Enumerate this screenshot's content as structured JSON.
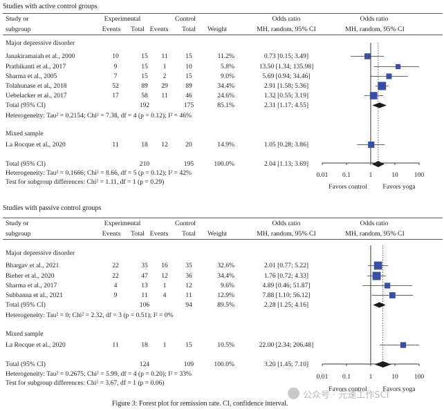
{
  "colors": {
    "box": "#3a4fa3",
    "diamond": "#1a1a1a",
    "line": "#333333",
    "dotted": "#333333"
  },
  "header": {
    "study": "Study or",
    "subgroup": "subgroup",
    "experimental": "Experimental",
    "control": "Control",
    "events": "Events",
    "total": "Total",
    "weight": "Weight",
    "or_title": "Odds ratio",
    "or_method": "MH, random, 95% CI"
  },
  "favors": {
    "left": "Favors control",
    "right": "Favors yoga"
  },
  "axis_ticks": [
    "0.01",
    "0.1",
    "1",
    "10",
    "100"
  ],
  "panels": [
    {
      "title": "Studies with active control groups",
      "groups": [
        {
          "name": "Major depressive disorder",
          "studies": [
            {
              "study": "Janakiramaiah et al., 2000",
              "e_events": "10",
              "e_total": "15",
              "c_events": "11",
              "c_total": "15",
              "weight": "11.2%",
              "ci": "0.73 [0.15; 3.49]"
            },
            {
              "study": "Prathikanti et al., 2017",
              "e_events": "9",
              "e_total": "15",
              "c_events": "1",
              "c_total": "10",
              "weight": "5.8%",
              "ci": "13.50 [1.34; 135.98]"
            },
            {
              "study": "Sharma et al., 2005",
              "e_events": "7",
              "e_total": "15",
              "c_events": "2",
              "c_total": "15",
              "weight": "9.0%",
              "ci": "5.69 [0.94; 34.46]"
            },
            {
              "study": "Tolahunase et al., 2018",
              "e_events": "52",
              "e_total": "89",
              "c_events": "29",
              "c_total": "89",
              "weight": "34.4%",
              "ci": "2.91 [1.58; 5.36]"
            },
            {
              "study": "Uebelacker et al., 2017",
              "e_events": "17",
              "e_total": "58",
              "c_events": "11",
              "c_total": "46",
              "weight": "24.6%",
              "ci": "1.32 [0.55; 3.19]"
            }
          ],
          "total": {
            "label": "Total (95% CI)",
            "e_total": "192",
            "c_total": "175",
            "weight": "85.1%",
            "ci": "2.31 [1.17; 4.55]"
          },
          "heterogeneity": "Heterogeneity: Tau² = 0.2154; Chi² = 7.38, df = 4 (p = 0.12); I² = 46%"
        },
        {
          "name": "Mixed sample",
          "studies": [
            {
              "study": "La Rocque et al., 2020",
              "e_events": "11",
              "e_total": "18",
              "c_events": "12",
              "c_total": "20",
              "weight": "14.9%",
              "ci": "1.05 [0.28; 3.86]"
            }
          ]
        }
      ],
      "overall": {
        "label": "Total (95% CI)",
        "e_total": "210",
        "c_total": "195",
        "weight": "100.0%",
        "ci": "2.04 [1.13; 3.69]"
      },
      "overall_heterogeneity": "Heterogeneity: Tau² = 0.1666; Chi² = 8.66, df = 5 (p = 0.12); I² = 42%",
      "subgroup_test": "Test for subgroup differences: Chi² = 1.11, df = 1 (p = 0.29)"
    },
    {
      "title": "Studies with passive control groups",
      "groups": [
        {
          "name": "Major depressive disorder",
          "studies": [
            {
              "study": "Bhargav et al., 2021",
              "e_events": "22",
              "e_total": "35",
              "c_events": "16",
              "c_total": "35",
              "weight": "32.6%",
              "ci": "2.01 [0.77; 5.22]"
            },
            {
              "study": "Bieber et al., 2020",
              "e_events": "22",
              "e_total": "47",
              "c_events": "12",
              "c_total": "36",
              "weight": "34.4%",
              "ci": "1.76 [0.72; 4.33]"
            },
            {
              "study": "Sharma et al., 2017",
              "e_events": "4",
              "e_total": "13",
              "c_events": "1",
              "c_total": "12",
              "weight": "9.6%",
              "ci": "4.89 [0.46; 51.87]"
            },
            {
              "study": "Subbanna et al., 2021",
              "e_events": "9",
              "e_total": "11",
              "c_events": "4",
              "c_total": "11",
              "weight": "12.9%",
              "ci": "7.88 [1.10; 56.12]"
            }
          ],
          "total": {
            "label": "Total (95% CI)",
            "e_total": "106",
            "c_total": "94",
            "weight": "89.5%",
            "ci": "2.28 [1.25; 4.16]"
          },
          "heterogeneity": "Heterogeneity: Tau² = 0; Chi² = 2.32, df = 3 (p = 0.51); I² = 0%"
        },
        {
          "name": "Mixed sample",
          "studies": [
            {
              "study": "La Rocque et al., 2020",
              "e_events": "11",
              "e_total": "18",
              "c_events": "1",
              "c_total": "15",
              "weight": "10.5%",
              "ci": "22.00 [2.34; 206.48]"
            }
          ]
        }
      ],
      "overall": {
        "label": "Total (95% CI)",
        "e_total": "124",
        "c_total": "109",
        "weight": "100.0%",
        "ci": "3.20 [1.45; 7.10]"
      },
      "overall_heterogeneity": "Heterogeneity: Tau² = 0.2675; Chi² = 5.99, df = 4 (p = 0.20); I² = 33%",
      "subgroup_test": "Test for subgroup differences: Chi² = 3.67, df = 1 (p = 0.06)"
    }
  ],
  "caption": "Figure 3: Forest plot for remission rate. CI, confidence interval.",
  "watermark": "公众号 · 元速工作SCI",
  "chart_data": [
    {
      "type": "forest",
      "title": "Studies with active control groups",
      "xscale": "log",
      "xlim": [
        0.01,
        100
      ],
      "reference_line": 1,
      "overall_dotted_line": 2.04,
      "studies": [
        {
          "name": "Janakiramaiah et al., 2000",
          "group": "Major depressive disorder",
          "or": 0.73,
          "lo": 0.15,
          "hi": 3.49,
          "weight": 11.2
        },
        {
          "name": "Prathikanti et al., 2017",
          "group": "Major depressive disorder",
          "or": 13.5,
          "lo": 1.34,
          "hi": 135.98,
          "weight": 5.8
        },
        {
          "name": "Sharma et al., 2005",
          "group": "Major depressive disorder",
          "or": 5.69,
          "lo": 0.94,
          "hi": 34.46,
          "weight": 9.0
        },
        {
          "name": "Tolahunase et al., 2018",
          "group": "Major depressive disorder",
          "or": 2.91,
          "lo": 1.58,
          "hi": 5.36,
          "weight": 34.4
        },
        {
          "name": "Uebelacker et al., 2017",
          "group": "Major depressive disorder",
          "or": 1.32,
          "lo": 0.55,
          "hi": 3.19,
          "weight": 24.6
        },
        {
          "name": "La Rocque et al., 2020",
          "group": "Mixed sample",
          "or": 1.05,
          "lo": 0.28,
          "hi": 3.86,
          "weight": 14.9
        }
      ],
      "subtotals": [
        {
          "group": "Major depressive disorder",
          "or": 2.31,
          "lo": 1.17,
          "hi": 4.55
        }
      ],
      "overall": {
        "or": 2.04,
        "lo": 1.13,
        "hi": 3.69
      }
    },
    {
      "type": "forest",
      "title": "Studies with passive control groups",
      "xscale": "log",
      "xlim": [
        0.01,
        100
      ],
      "reference_line": 1,
      "overall_dotted_line": 3.2,
      "studies": [
        {
          "name": "Bhargav et al., 2021",
          "group": "Major depressive disorder",
          "or": 2.01,
          "lo": 0.77,
          "hi": 5.22,
          "weight": 32.6
        },
        {
          "name": "Bieber et al., 2020",
          "group": "Major depressive disorder",
          "or": 1.76,
          "lo": 0.72,
          "hi": 4.33,
          "weight": 34.4
        },
        {
          "name": "Sharma et al., 2017",
          "group": "Major depressive disorder",
          "or": 4.89,
          "lo": 0.46,
          "hi": 51.87,
          "weight": 9.6
        },
        {
          "name": "Subbanna et al., 2021",
          "group": "Major depressive disorder",
          "or": 7.88,
          "lo": 1.1,
          "hi": 56.12,
          "weight": 12.9
        },
        {
          "name": "La Rocque et al., 2020",
          "group": "Mixed sample",
          "or": 22.0,
          "lo": 2.34,
          "hi": 206.48,
          "weight": 10.5
        }
      ],
      "subtotals": [
        {
          "group": "Major depressive disorder",
          "or": 2.28,
          "lo": 1.25,
          "hi": 4.16
        }
      ],
      "overall": {
        "or": 3.2,
        "lo": 1.45,
        "hi": 7.1
      }
    }
  ]
}
